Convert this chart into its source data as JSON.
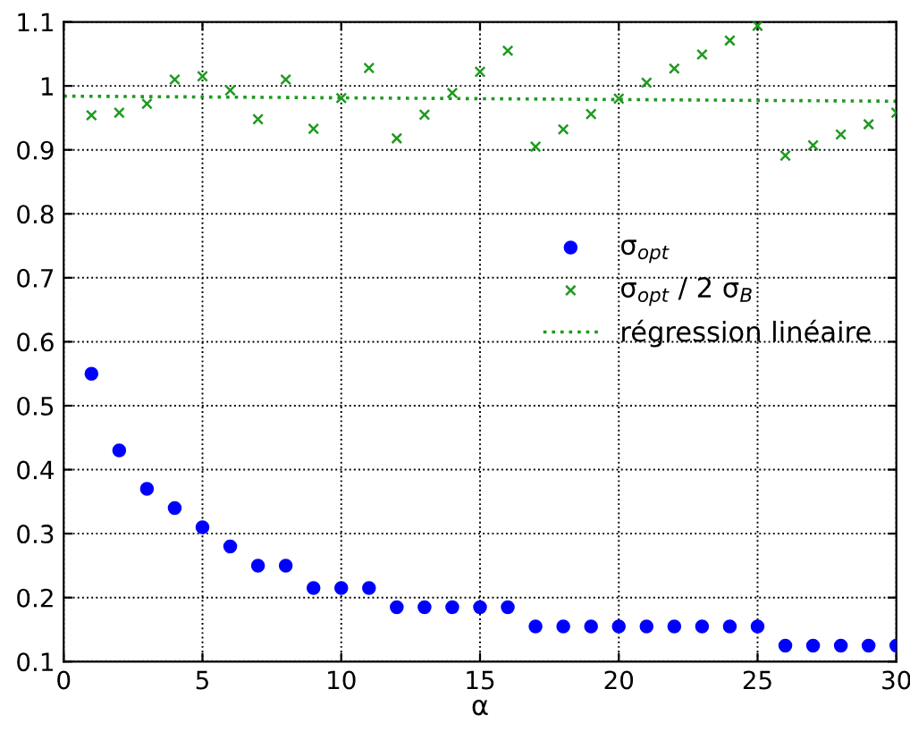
{
  "chart_data": {
    "type": "scatter",
    "xlabel": "α",
    "xlim": [
      0,
      30
    ],
    "xticks": [
      0,
      5,
      10,
      15,
      20,
      25,
      30
    ],
    "ylim": [
      0.1,
      1.1
    ],
    "yticks": [
      0.1,
      0.2,
      0.3,
      0.4,
      0.5,
      0.6,
      0.7,
      0.8,
      0.9,
      1,
      1.1
    ],
    "grid": true,
    "legend": "center right",
    "series": [
      {
        "name": "σ$_{opt}$",
        "marker": "circle",
        "color": "#0000ff",
        "x": [
          1,
          2,
          3,
          4,
          5,
          6,
          7,
          8,
          9,
          10,
          11,
          12,
          13,
          14,
          15,
          16,
          17,
          18,
          19,
          20,
          21,
          22,
          23,
          24,
          25,
          26,
          27,
          28,
          29,
          30
        ],
        "values": [
          0.55,
          0.43,
          0.37,
          0.34,
          0.31,
          0.28,
          0.25,
          0.25,
          0.215,
          0.215,
          0.215,
          0.185,
          0.185,
          0.185,
          0.185,
          0.185,
          0.155,
          0.155,
          0.155,
          0.155,
          0.155,
          0.155,
          0.155,
          0.155,
          0.155,
          0.125,
          0.125,
          0.125,
          0.125,
          0.125
        ]
      },
      {
        "name": "σ$_{opt}$ / 2 σ$_{B}$",
        "marker": "cross",
        "color": "#1f9a1f",
        "x": [
          1,
          2,
          3,
          4,
          5,
          6,
          7,
          8,
          9,
          10,
          11,
          12,
          13,
          14,
          15,
          16,
          17,
          18,
          19,
          20,
          21,
          22,
          23,
          24,
          25,
          26,
          27,
          28,
          29,
          30
        ],
        "values": [
          0.954,
          0.958,
          0.972,
          1.01,
          1.015,
          0.993,
          0.948,
          1.01,
          0.933,
          0.981,
          1.028,
          0.918,
          0.955,
          0.989,
          1.022,
          1.055,
          0.905,
          0.932,
          0.956,
          0.98,
          1.005,
          1.027,
          1.049,
          1.071,
          1.094,
          0.891,
          0.907,
          0.924,
          0.94,
          0.958
        ]
      },
      {
        "name": "régression linéaire",
        "type": "line",
        "marker": "none",
        "line_style": "dotted",
        "color": "#1f9a1f",
        "x": [
          0,
          30
        ],
        "values": [
          0.984,
          0.976
        ]
      }
    ]
  }
}
